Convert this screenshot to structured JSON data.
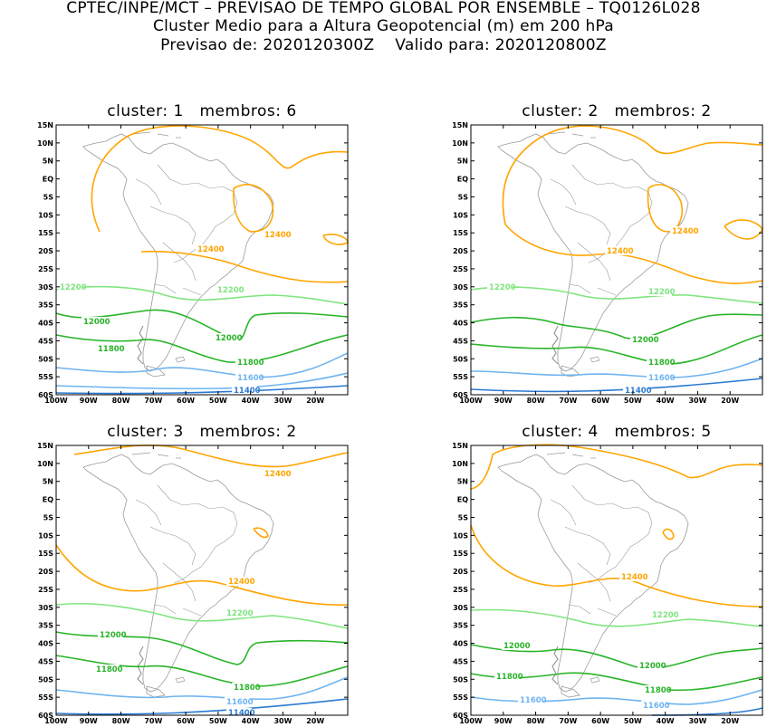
{
  "header": {
    "line1": "CPTEC/INPE/MCT – PREVISAO DE TEMPO GLOBAL POR ENSEMBLE – TQ0126L028",
    "line2": "Cluster Medio para a Altura Geopotencial (m) em 200 hPa",
    "line3_a": "Previsao de: 2020120300Z",
    "line3_b": "Valido para: 2020120800Z"
  },
  "panels": [
    {
      "title_a": "cluster: 1",
      "title_b": "membros: 6"
    },
    {
      "title_a": "cluster: 2",
      "title_b": "membros: 2"
    },
    {
      "title_a": "cluster: 3",
      "title_b": "membros: 2"
    },
    {
      "title_a": "cluster: 4",
      "title_b": "membros: 5"
    }
  ],
  "map_axes": {
    "lat_ticks": [
      "15N",
      "10N",
      "5N",
      "EQ",
      "5S",
      "10S",
      "15S",
      "20S",
      "25S",
      "30S",
      "35S",
      "40S",
      "45S",
      "50S",
      "55S",
      "60S"
    ],
    "lon_ticks": [
      "100W",
      "90W",
      "80W",
      "70W",
      "60W",
      "50W",
      "40W",
      "30W",
      "20W"
    ],
    "lat_range": [
      -60,
      15
    ],
    "lon_range": [
      -100,
      -10
    ]
  },
  "contour_colors": {
    "12400": "#ffa500",
    "12200": "#7fe57f",
    "12000": "#28b428",
    "11800": "#28b428",
    "11600": "#6fb4f0",
    "11400": "#2a7ad2"
  },
  "contour_labels": {
    "p1": [
      {
        "text": "12400",
        "color": "#ffa500"
      },
      {
        "text": "12400",
        "color": "#ffa500"
      },
      {
        "text": "12200",
        "color": "#7fe57f"
      },
      {
        "text": "12200",
        "color": "#7fe57f"
      },
      {
        "text": "12000",
        "color": "#28b428"
      },
      {
        "text": "12000",
        "color": "#28b428"
      },
      {
        "text": "11800",
        "color": "#28b428"
      },
      {
        "text": "11800",
        "color": "#28b428"
      },
      {
        "text": "11600",
        "color": "#6fb4f0"
      },
      {
        "text": "11400",
        "color": "#2a7ad2"
      }
    ],
    "p2": [
      {
        "text": "12400",
        "color": "#ffa500"
      },
      {
        "text": "12400",
        "color": "#ffa500"
      },
      {
        "text": "12200",
        "color": "#7fe57f"
      },
      {
        "text": "12200",
        "color": "#7fe57f"
      },
      {
        "text": "12000",
        "color": "#28b428"
      },
      {
        "text": "11800",
        "color": "#28b428"
      },
      {
        "text": "11600",
        "color": "#6fb4f0"
      },
      {
        "text": "11400",
        "color": "#2a7ad2"
      }
    ],
    "p3": [
      {
        "text": "12400",
        "color": "#ffa500"
      },
      {
        "text": "12400",
        "color": "#ffa500"
      },
      {
        "text": "12200",
        "color": "#7fe57f"
      },
      {
        "text": "12000",
        "color": "#28b428"
      },
      {
        "text": "11800",
        "color": "#28b428"
      },
      {
        "text": "11800",
        "color": "#28b428"
      },
      {
        "text": "11600",
        "color": "#6fb4f0"
      },
      {
        "text": "11400",
        "color": "#2a7ad2"
      }
    ],
    "p4": [
      {
        "text": "12400",
        "color": "#ffa500"
      },
      {
        "text": "12200",
        "color": "#7fe57f"
      },
      {
        "text": "12000",
        "color": "#28b428"
      },
      {
        "text": "12000",
        "color": "#28b428"
      },
      {
        "text": "11800",
        "color": "#28b428"
      },
      {
        "text": "11800",
        "color": "#28b428"
      },
      {
        "text": "11600",
        "color": "#6fb4f0"
      },
      {
        "text": "11600",
        "color": "#6fb4f0"
      }
    ]
  }
}
